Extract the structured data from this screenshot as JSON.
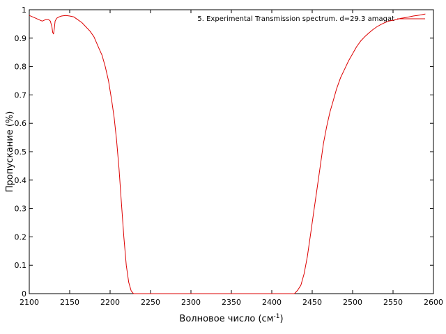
{
  "chart_data": {
    "type": "line",
    "xlabel": "Волновое число (см",
    "xlabel_superscript": "-1",
    "xlabel_suffix": ")",
    "ylabel": "Пропускание (%)",
    "xlim": [
      2100,
      2600
    ],
    "ylim": [
      0,
      1
    ],
    "xticks": [
      2100,
      2150,
      2200,
      2250,
      2300,
      2350,
      2400,
      2450,
      2500,
      2550,
      2600
    ],
    "yticks": [
      0,
      0.1,
      0.2,
      0.3,
      0.4,
      0.5,
      0.6,
      0.7,
      0.8,
      0.9,
      1
    ],
    "grid": false,
    "legend_position": "top-right",
    "line_color": "#dd0000",
    "series": [
      {
        "name": "5. Experimental Transmission spectrum. d=29.3 amagat",
        "x": [
          2100,
          2104,
          2108,
          2112,
          2116,
          2120,
          2124,
          2126,
          2128,
          2129,
          2130,
          2131,
          2132,
          2134,
          2137,
          2140,
          2145,
          2150,
          2155,
          2160,
          2165,
          2170,
          2175,
          2180,
          2183,
          2186,
          2190,
          2194,
          2198,
          2202,
          2205,
          2208,
          2211,
          2214,
          2217,
          2220,
          2223,
          2226,
          2229,
          2232,
          2234,
          2236,
          2238,
          2240,
          2245,
          2300,
          2350,
          2400,
          2428,
          2432,
          2436,
          2440,
          2444,
          2448,
          2452,
          2456,
          2460,
          2464,
          2468,
          2472,
          2476,
          2480,
          2485,
          2490,
          2495,
          2500,
          2505,
          2510,
          2515,
          2520,
          2525,
          2530,
          2535,
          2540,
          2545,
          2550,
          2555,
          2560,
          2565,
          2570,
          2575,
          2580,
          2585,
          2590
        ],
        "y": [
          0.98,
          0.975,
          0.97,
          0.965,
          0.96,
          0.965,
          0.965,
          0.96,
          0.94,
          0.92,
          0.915,
          0.935,
          0.96,
          0.97,
          0.975,
          0.978,
          0.98,
          0.978,
          0.975,
          0.965,
          0.955,
          0.94,
          0.925,
          0.905,
          0.885,
          0.865,
          0.84,
          0.8,
          0.75,
          0.68,
          0.62,
          0.54,
          0.44,
          0.32,
          0.2,
          0.1,
          0.04,
          0.01,
          0.0,
          0.0,
          0.0,
          0.0,
          0.0,
          0.0,
          0.0,
          0.0,
          0.0,
          0.0,
          0.0,
          0.012,
          0.03,
          0.07,
          0.13,
          0.21,
          0.29,
          0.37,
          0.45,
          0.53,
          0.59,
          0.64,
          0.68,
          0.72,
          0.76,
          0.79,
          0.82,
          0.845,
          0.87,
          0.89,
          0.905,
          0.918,
          0.93,
          0.94,
          0.948,
          0.955,
          0.96,
          0.963,
          0.966,
          0.97,
          0.972,
          0.975,
          0.978,
          0.98,
          0.982,
          0.985
        ]
      }
    ]
  }
}
